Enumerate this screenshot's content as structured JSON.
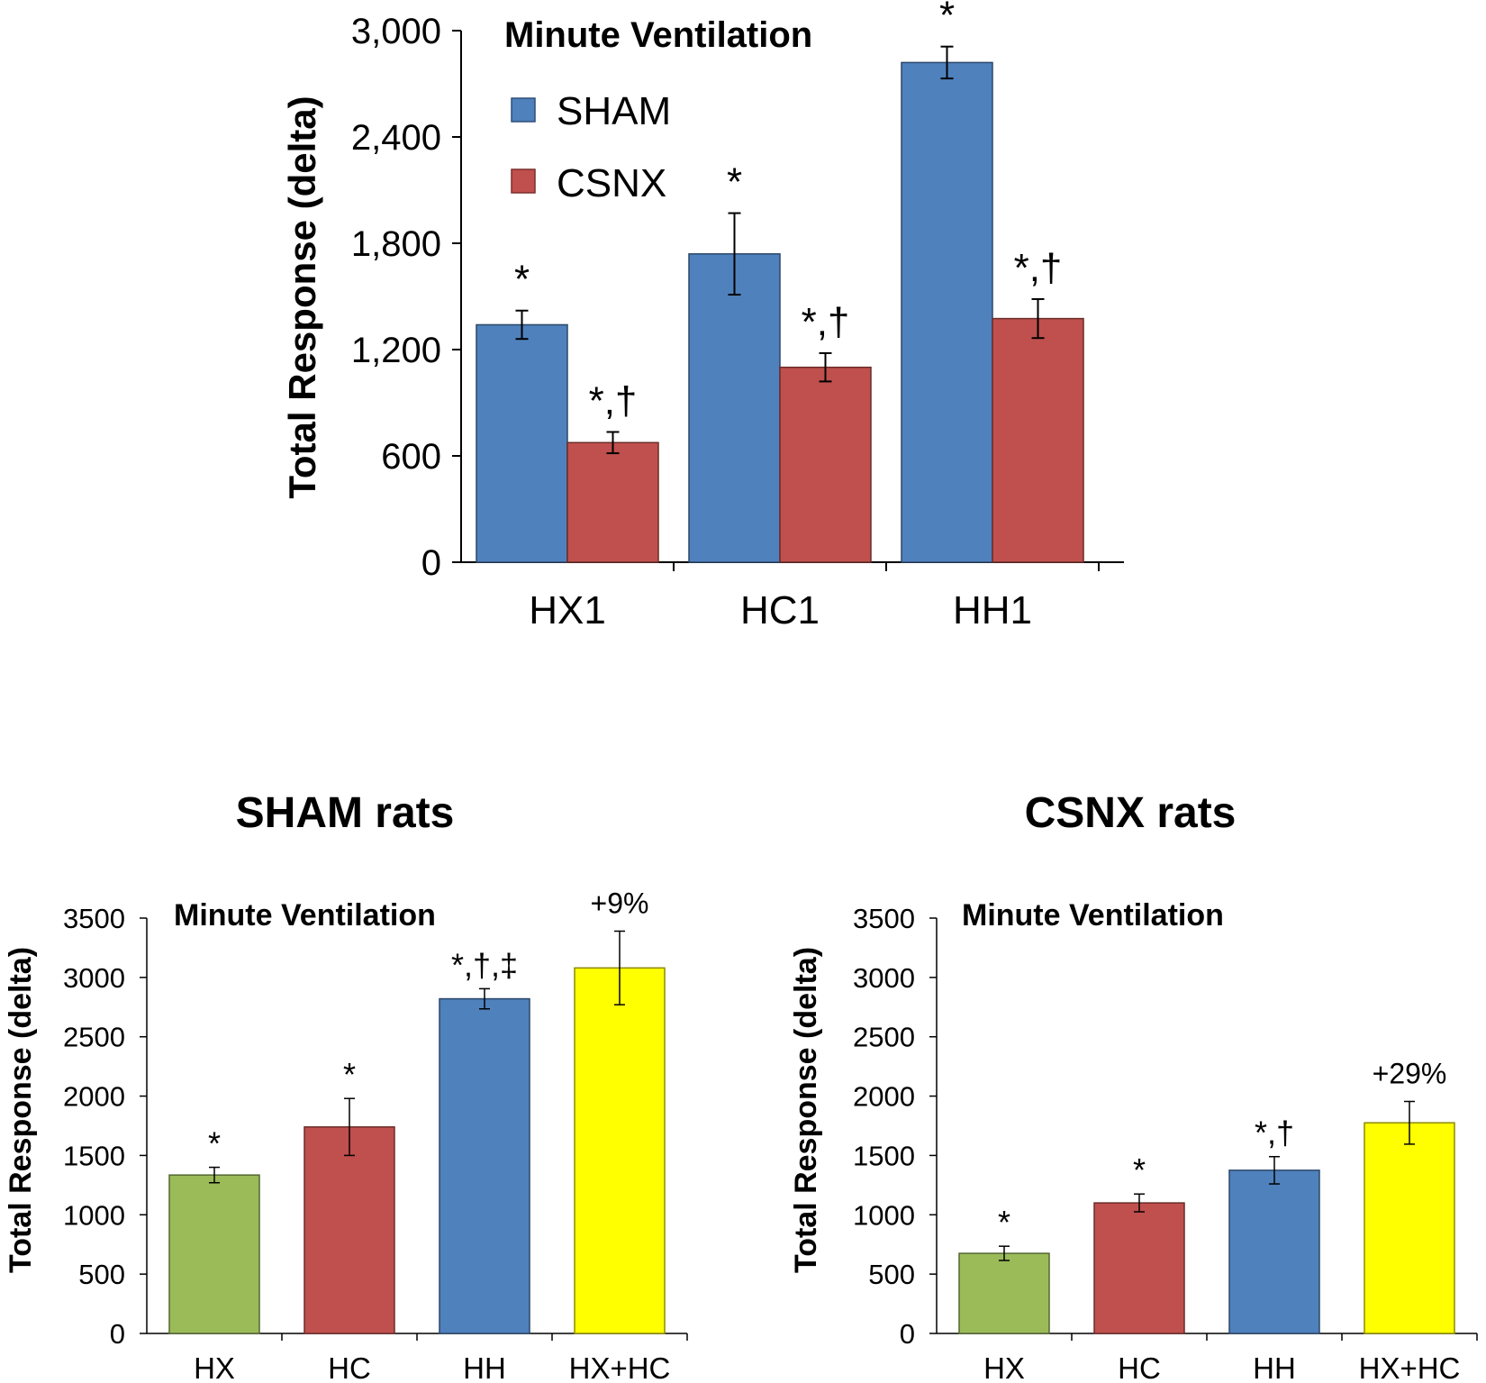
{
  "chart_data": [
    {
      "id": "top",
      "type": "bar",
      "title": "Minute Ventilation",
      "xlabel": "",
      "ylabel": "Total Response (delta)",
      "ylim": [
        0,
        3000
      ],
      "yticks": [
        0,
        600,
        1200,
        1800,
        2400,
        3000
      ],
      "ytick_labels": [
        "0",
        "600",
        "1,200",
        "1,800",
        "2,400",
        "3,000"
      ],
      "categories": [
        "HX1",
        "HC1",
        "HH1"
      ],
      "legend": "top-left",
      "series": [
        {
          "name": "SHAM",
          "color": "#4F81BD",
          "values": [
            1340,
            1740,
            2820
          ],
          "errors": [
            80,
            230,
            90
          ],
          "annotations": [
            "*",
            "*",
            "*"
          ]
        },
        {
          "name": "CSNX",
          "color": "#C0504D",
          "values": [
            675,
            1100,
            1375
          ],
          "errors": [
            60,
            80,
            110
          ],
          "annotations": [
            "*,†",
            "*,†",
            "*,†"
          ]
        }
      ]
    },
    {
      "id": "sham",
      "type": "bar",
      "heading": "SHAM rats",
      "title": "Minute Ventilation",
      "xlabel": "",
      "ylabel": "Total Response (delta)",
      "ylim": [
        0,
        3500
      ],
      "yticks": [
        0,
        500,
        1000,
        1500,
        2000,
        2500,
        3000,
        3500
      ],
      "ytick_labels": [
        "0",
        "500",
        "1000",
        "1500",
        "2000",
        "2500",
        "3000",
        "3500"
      ],
      "categories": [
        "HX",
        "HC",
        "HH",
        "HX+HC"
      ],
      "values": [
        1335,
        1740,
        2820,
        3080
      ],
      "errors": [
        65,
        240,
        85,
        310
      ],
      "colors": [
        "#9BBB59",
        "#C0504D",
        "#4F81BD",
        "#FFFF00"
      ],
      "annotations": [
        "*",
        "*",
        "*,†,‡",
        "+9%"
      ]
    },
    {
      "id": "csnx",
      "type": "bar",
      "heading": "CSNX rats",
      "title": "Minute Ventilation",
      "xlabel": "",
      "ylabel": "Total Response (delta)",
      "ylim": [
        0,
        3500
      ],
      "yticks": [
        0,
        500,
        1000,
        1500,
        2000,
        2500,
        3000,
        3500
      ],
      "ytick_labels": [
        "0",
        "500",
        "1000",
        "1500",
        "2000",
        "2500",
        "3000",
        "3500"
      ],
      "categories": [
        "HX",
        "HC",
        "HH",
        "HX+HC"
      ],
      "values": [
        675,
        1100,
        1375,
        1775
      ],
      "errors": [
        60,
        75,
        115,
        180
      ],
      "colors": [
        "#9BBB59",
        "#C0504D",
        "#4F81BD",
        "#FFFF00"
      ],
      "annotations": [
        "*",
        "*",
        "*,†",
        "+29%"
      ]
    }
  ]
}
